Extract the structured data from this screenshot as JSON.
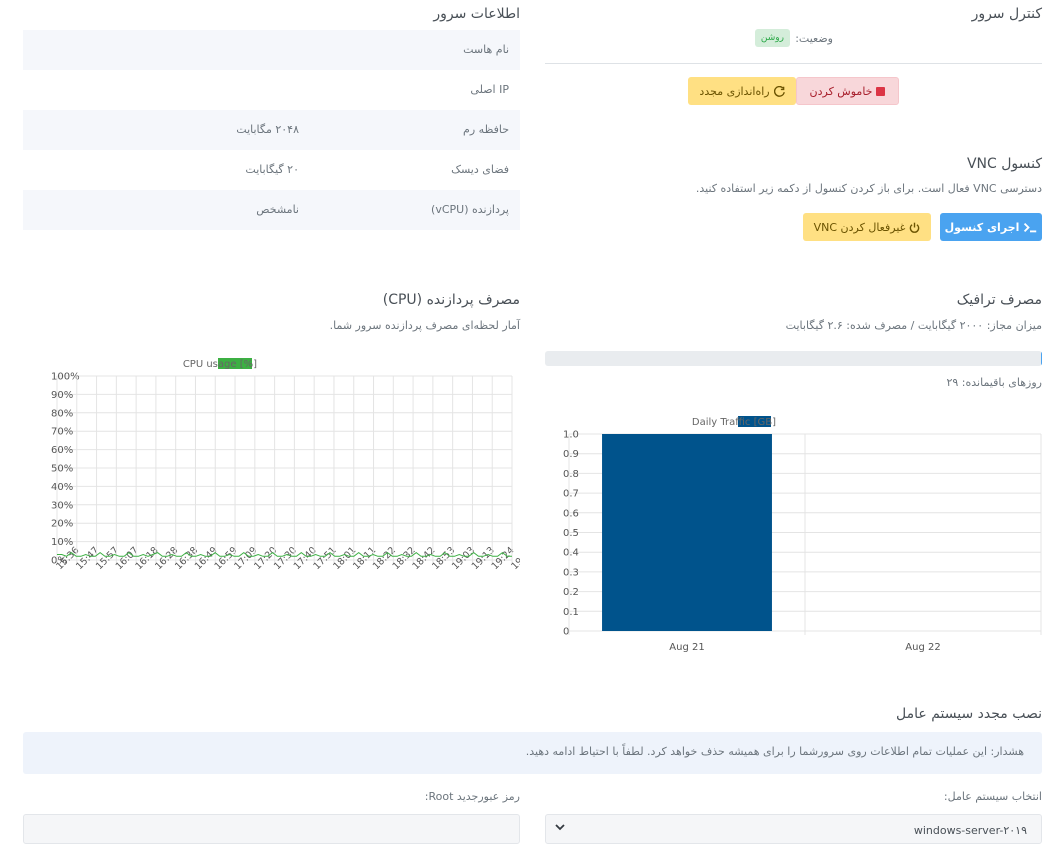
{
  "server_control": {
    "title": "کنترل سرور",
    "status_label": "وضعیت:",
    "status_value": "روشن",
    "status_color": "#28a745",
    "shutdown_label": "خاموش کردن",
    "shutdown_icon": "stop-square-icon",
    "restart_label": "راه‌اندازی مجدد",
    "restart_icon": "refresh-icon"
  },
  "server_info": {
    "title": "اطلاعات سرور",
    "rows": [
      {
        "label": "نام هاست",
        "value": ""
      },
      {
        "label": "IP اصلی",
        "value": ""
      },
      {
        "label": "حافظه رم",
        "value": "۲۰۴۸ مگابایت"
      },
      {
        "label": "فضای دیسک",
        "value": "۲۰ گیگابایت"
      },
      {
        "label": "پردازنده (vCPU)",
        "value": "نامشخص"
      }
    ]
  },
  "vnc": {
    "title": "کنسول VNC",
    "description": "دسترسی VNC فعال است. برای باز کردن کنسول از دکمه زیر استفاده کنید.",
    "launch_label": "اجرای کنسول",
    "launch_icon": "terminal-icon",
    "disable_label": "غیرفعال کردن VNC",
    "disable_icon": "power-icon"
  },
  "traffic": {
    "title": "مصرف ترافیک",
    "summary": "میزان مجاز: ۲۰۰۰ گیگابایت / مصرف شده: ۲.۶ گیگابایت",
    "progress_percent": 0.13,
    "days_left": "روزهای باقیمانده: ۲۹"
  },
  "cpu": {
    "title": "مصرف پردازنده (CPU)",
    "description": "آمار لحظه‌ای مصرف پردازنده سرور شما."
  },
  "reinstall": {
    "title": "نصب مجدد سیستم عامل",
    "warning": "هشدار: این عملیات تمام اطلاعات روی سرورشما را برای همیشه حذف خواهد کرد. لطفاً با احتیاط ادامه دهید.",
    "os_label": "انتخاب سیستم عامل:",
    "os_value": "windows-server-۲۰۱۹",
    "password_label": "رمز عبورجدید Root:",
    "password_value": ""
  },
  "chart_data": [
    {
      "type": "line",
      "legend": "[%] CPU usage",
      "series_color": "#3cb043",
      "ylim": [
        0,
        100
      ],
      "y_ticks": [
        "0%",
        "10%",
        "20%",
        "30%",
        "40%",
        "50%",
        "60%",
        "70%",
        "80%",
        "90%",
        "100%"
      ],
      "x_ticks": [
        "15:36",
        "15:47",
        "15:57",
        "16:07",
        "16:18",
        "16:28",
        "16:38",
        "16:49",
        "16:59",
        "17:09",
        "17:20",
        "17:30",
        "17:40",
        "17:51",
        "18:01",
        "18:11",
        "18:22",
        "18:32",
        "18:42",
        "18:53",
        "19:03",
        "19:13",
        "19:24",
        "19:34"
      ],
      "values": [
        3,
        3,
        2,
        4,
        2,
        2,
        3,
        2,
        2,
        4,
        2,
        2,
        3,
        2,
        2,
        4,
        2,
        2,
        3,
        2,
        3,
        4,
        2,
        2,
        3,
        2,
        2,
        4,
        2,
        2,
        3,
        2,
        2,
        4,
        2,
        2,
        3,
        2,
        2,
        4,
        2,
        2,
        3,
        2,
        2,
        4,
        2,
        2,
        3,
        2,
        2,
        4,
        2,
        2,
        3,
        2,
        2,
        4,
        2,
        2,
        3,
        2,
        2,
        4,
        2,
        2,
        3,
        2,
        2,
        4,
        2,
        2,
        3,
        2,
        2,
        4,
        2,
        2,
        3,
        2,
        2,
        4,
        2,
        2,
        3,
        2,
        2,
        4,
        2,
        2,
        3,
        2,
        2,
        4,
        2,
        2
      ],
      "grid": true,
      "legend_position": "top"
    },
    {
      "type": "bar",
      "legend": "Daily Traffic [GB]",
      "series_color": "#00538c",
      "categories": [
        "Aug 21",
        "Aug 22"
      ],
      "values": [
        1.0,
        0
      ],
      "ylim": [
        0,
        1.0
      ],
      "y_ticks": [
        "0",
        "0.1",
        "0.2",
        "0.3",
        "0.4",
        "0.5",
        "0.6",
        "0.7",
        "0.8",
        "0.9",
        "1.0"
      ],
      "grid": true,
      "legend_position": "top"
    }
  ]
}
